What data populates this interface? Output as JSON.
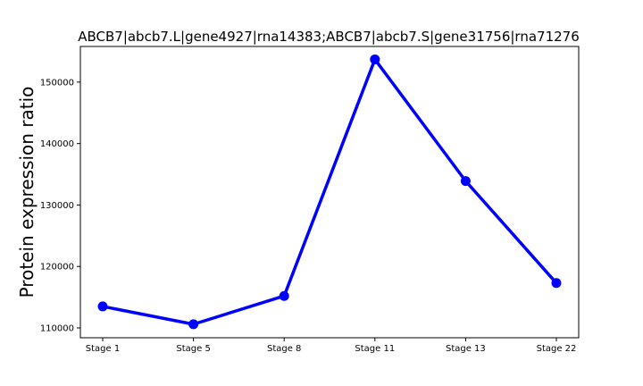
{
  "chart_data": {
    "type": "line",
    "title": "ABCB7|abcb7.L|gene4927|rna14383;ABCB7|abcb7.S|gene31756|rna71276",
    "xlabel": "",
    "ylabel": "Protein expression ratio",
    "categories": [
      "Stage 1",
      "Stage 5",
      "Stage 8",
      "Stage 11",
      "Stage 13",
      "Stage 22"
    ],
    "series": [
      {
        "values": [
          113500,
          110600,
          115200,
          153700,
          133900,
          117300
        ],
        "color": "#0000ff",
        "marker": "circle"
      }
    ],
    "ylim": [
      108400,
      155800
    ],
    "yticks": [
      110000,
      120000,
      130000,
      140000,
      150000
    ],
    "grid": false,
    "legend": "none"
  }
}
